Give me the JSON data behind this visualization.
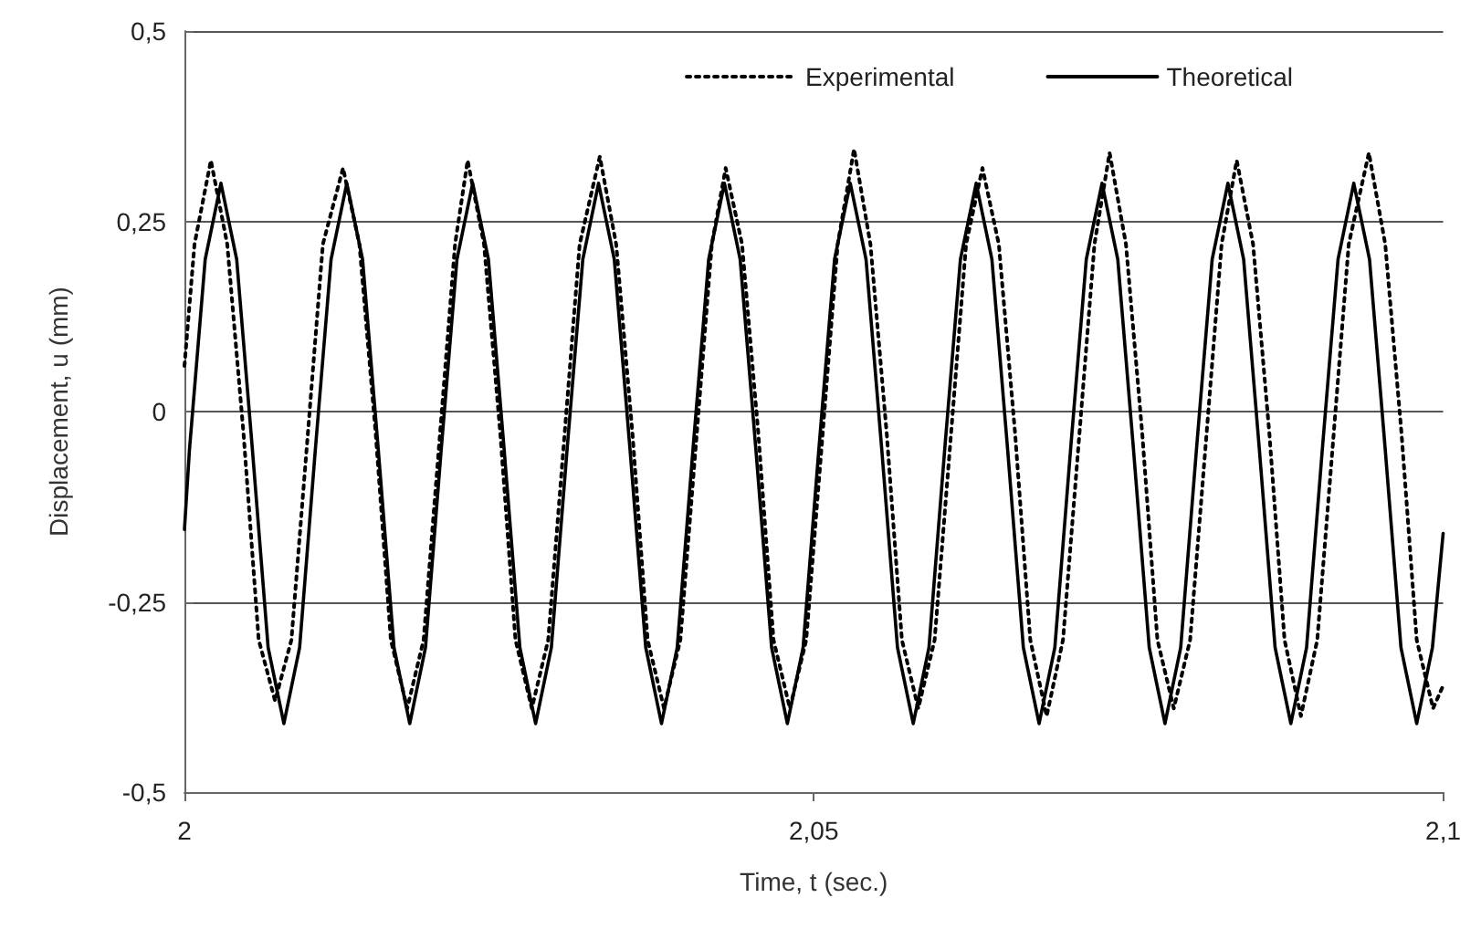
{
  "chart_data": {
    "type": "line",
    "xlabel": "Time, t (sec.)",
    "ylabel": "Displacement, u (mm)",
    "xlim": [
      2,
      2.1
    ],
    "xticks": [
      2,
      {
        "value": 2.05,
        "label": "2,05"
      },
      {
        "value": 2.1,
        "label": "2,1"
      }
    ],
    "ylim": [
      -0.5,
      0.5
    ],
    "yticks": [
      {
        "value": -0.5,
        "label": "-0,5"
      },
      {
        "value": -0.25,
        "label": "-0,25"
      },
      0,
      {
        "value": 0.25,
        "label": "0,25"
      },
      {
        "value": 0.5,
        "label": "0,5"
      }
    ],
    "grid": "y",
    "legend": "top right",
    "marker": "none",
    "series": [
      {
        "name": "Experimental",
        "color": "#000000",
        "line_style": "dotted",
        "x": [
          2.0,
          2.0008,
          2.0021,
          2.0034,
          2.0047,
          2.0059,
          2.0072,
          2.0085,
          2.0098,
          2.011,
          2.0126,
          2.0139,
          2.0152,
          2.0164,
          2.0177,
          2.019,
          2.0203,
          2.0215,
          2.0225,
          2.0238,
          2.0251,
          2.0263,
          2.0276,
          2.0289,
          2.0302,
          2.0314,
          2.033,
          2.0343,
          2.0356,
          2.0368,
          2.0381,
          2.0394,
          2.0407,
          2.0419,
          2.043,
          2.0443,
          2.0456,
          2.0468,
          2.0481,
          2.0494,
          2.0507,
          2.0519,
          2.0532,
          2.0545,
          2.0558,
          2.057,
          2.0583,
          2.0596,
          2.0609,
          2.0621,
          2.0634,
          2.0647,
          2.066,
          2.0672,
          2.0685,
          2.0698,
          2.0711,
          2.0723,
          2.0735,
          2.0748,
          2.0761,
          2.0773,
          2.0786,
          2.0799,
          2.0812,
          2.0824,
          2.0836,
          2.0849,
          2.0862,
          2.0874,
          2.0887,
          2.09,
          2.0913,
          2.0925,
          2.0941,
          2.0954,
          2.0967,
          2.0979,
          2.0992,
          2.1
        ],
        "values": [
          0.06,
          0.22,
          0.33,
          0.22,
          -0.03,
          -0.3,
          -0.38,
          -0.3,
          -0.03,
          0.22,
          0.32,
          0.22,
          -0.03,
          -0.3,
          -0.39,
          -0.3,
          -0.03,
          0.22,
          0.33,
          0.22,
          -0.03,
          -0.3,
          -0.39,
          -0.3,
          -0.03,
          0.22,
          0.335,
          0.22,
          -0.03,
          -0.3,
          -0.39,
          -0.3,
          -0.03,
          0.22,
          0.32,
          0.22,
          -0.03,
          -0.3,
          -0.39,
          -0.3,
          -0.03,
          0.22,
          0.345,
          0.22,
          -0.03,
          -0.3,
          -0.39,
          -0.3,
          -0.03,
          0.22,
          0.32,
          0.22,
          -0.03,
          -0.3,
          -0.4,
          -0.3,
          -0.03,
          0.22,
          0.34,
          0.22,
          -0.03,
          -0.3,
          -0.39,
          -0.3,
          -0.03,
          0.22,
          0.33,
          0.22,
          -0.03,
          -0.3,
          -0.4,
          -0.3,
          -0.03,
          0.22,
          0.34,
          0.22,
          -0.03,
          -0.3,
          -0.39,
          -0.36
        ]
      },
      {
        "name": "Theoretical",
        "color": "#000000",
        "line_style": "solid",
        "x": [
          2.0,
          2.0004,
          2.00165,
          2.0029,
          2.00415,
          2.0054,
          2.00665,
          2.0079,
          2.00915,
          2.0104,
          2.01165,
          2.0129,
          2.01415,
          2.0154,
          2.01665,
          2.0179,
          2.01915,
          2.0204,
          2.02165,
          2.0229,
          2.02415,
          2.0254,
          2.02665,
          2.0279,
          2.02915,
          2.0304,
          2.03165,
          2.0329,
          2.03415,
          2.0354,
          2.03665,
          2.0379,
          2.03915,
          2.0404,
          2.04165,
          2.0429,
          2.04415,
          2.0454,
          2.04665,
          2.0479,
          2.04915,
          2.0504,
          2.05165,
          2.0529,
          2.05415,
          2.0554,
          2.05665,
          2.0579,
          2.05915,
          2.0604,
          2.06165,
          2.0629,
          2.06415,
          2.0654,
          2.06665,
          2.0679,
          2.06915,
          2.0704,
          2.07165,
          2.0729,
          2.07415,
          2.0754,
          2.07665,
          2.0779,
          2.07915,
          2.0804,
          2.08165,
          2.0829,
          2.08415,
          2.0854,
          2.08665,
          2.0879,
          2.08915,
          2.0904,
          2.09165,
          2.0929,
          2.09415,
          2.0954,
          2.09665,
          2.0979,
          2.09915,
          2.1
        ],
        "values": [
          -0.155,
          -0.05,
          0.2,
          0.3,
          0.2,
          -0.05,
          -0.31,
          -0.41,
          -0.31,
          -0.05,
          0.2,
          0.3,
          0.2,
          -0.05,
          -0.31,
          -0.41,
          -0.31,
          -0.05,
          0.2,
          0.3,
          0.2,
          -0.05,
          -0.31,
          -0.41,
          -0.31,
          -0.05,
          0.2,
          0.3,
          0.2,
          -0.05,
          -0.31,
          -0.41,
          -0.31,
          -0.05,
          0.2,
          0.3,
          0.2,
          -0.05,
          -0.31,
          -0.41,
          -0.31,
          -0.05,
          0.2,
          0.3,
          0.2,
          -0.05,
          -0.31,
          -0.41,
          -0.31,
          -0.05,
          0.2,
          0.3,
          0.2,
          -0.05,
          -0.31,
          -0.41,
          -0.31,
          -0.05,
          0.2,
          0.3,
          0.2,
          -0.05,
          -0.31,
          -0.41,
          -0.31,
          -0.05,
          0.2,
          0.3,
          0.2,
          -0.05,
          -0.31,
          -0.41,
          -0.31,
          -0.05,
          0.2,
          0.3,
          0.2,
          -0.05,
          -0.31,
          -0.41,
          -0.31,
          -0.16
        ]
      }
    ]
  }
}
